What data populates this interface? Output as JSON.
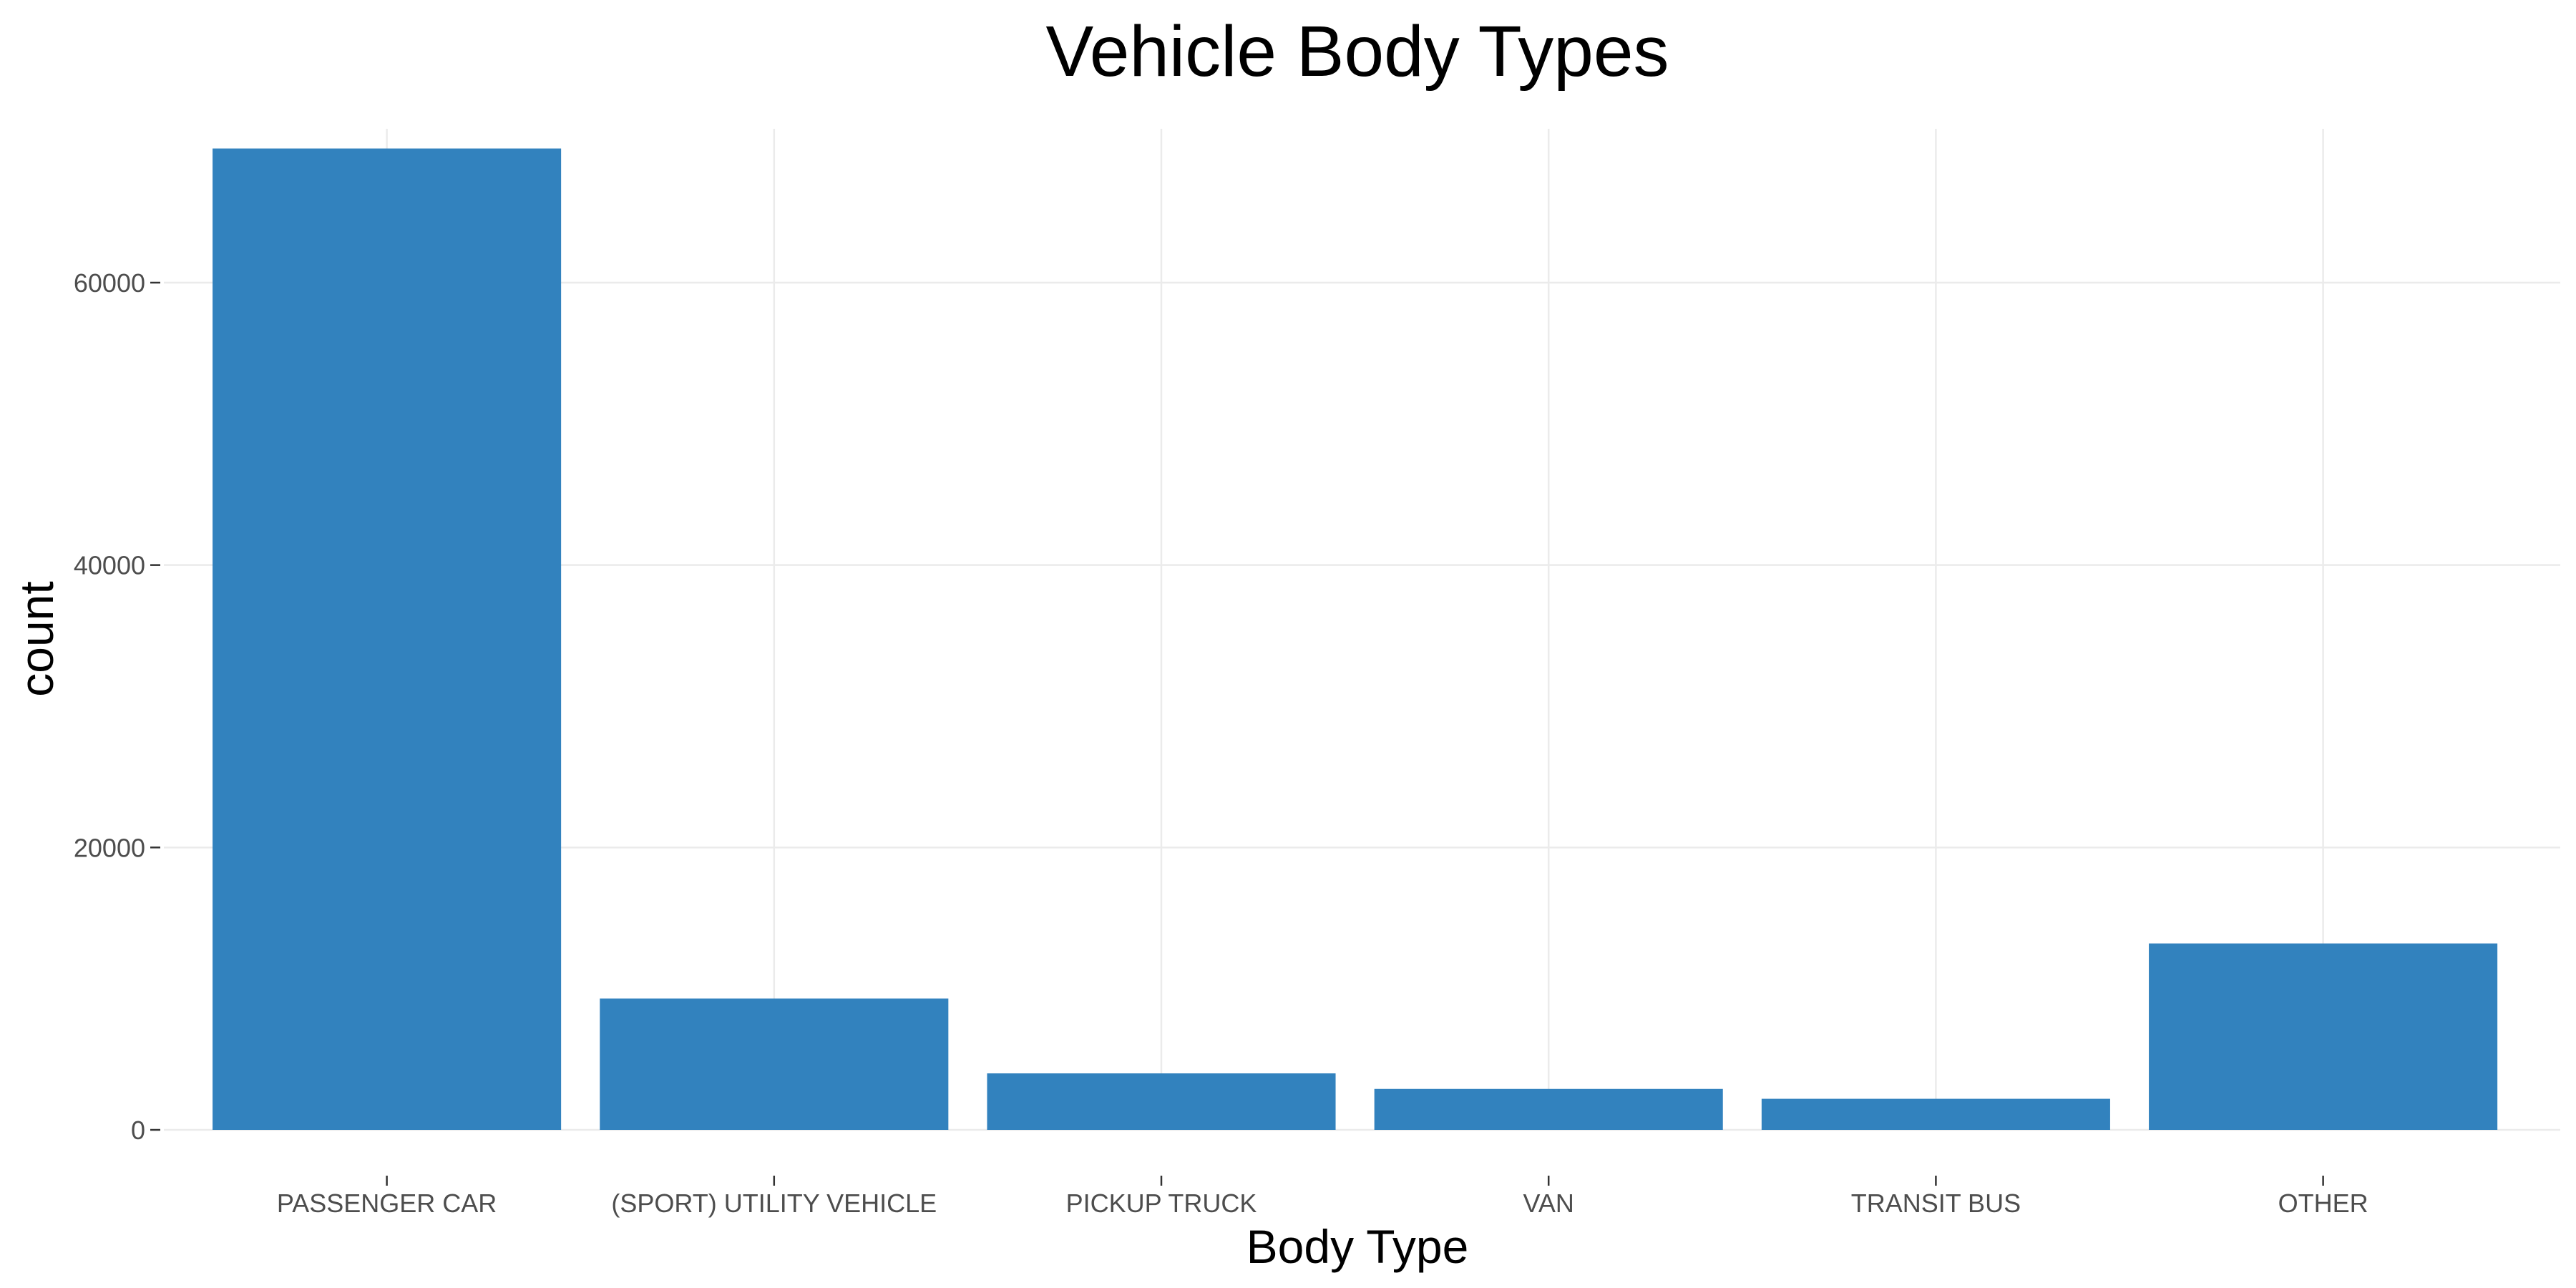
{
  "chart_data": {
    "type": "bar",
    "title": "Vehicle Body Types",
    "xlabel": "Body Type",
    "ylabel": "count",
    "categories": [
      "PASSENGER CAR",
      "(SPORT) UTILITY VEHICLE",
      "PICKUP TRUCK",
      "VAN",
      "TRANSIT BUS",
      "OTHER"
    ],
    "values": [
      69500,
      9300,
      4000,
      2900,
      2200,
      13200
    ],
    "ylim": [
      0,
      72000
    ],
    "yticks": [
      0,
      20000,
      40000,
      60000
    ],
    "ytick_labels": [
      "0",
      "20000",
      "40000",
      "60000"
    ],
    "grid": true,
    "legend": "none",
    "colors": {
      "bar": "#3282be",
      "grid": "#ebebeb",
      "tick_text": "#4d4d4d"
    }
  }
}
